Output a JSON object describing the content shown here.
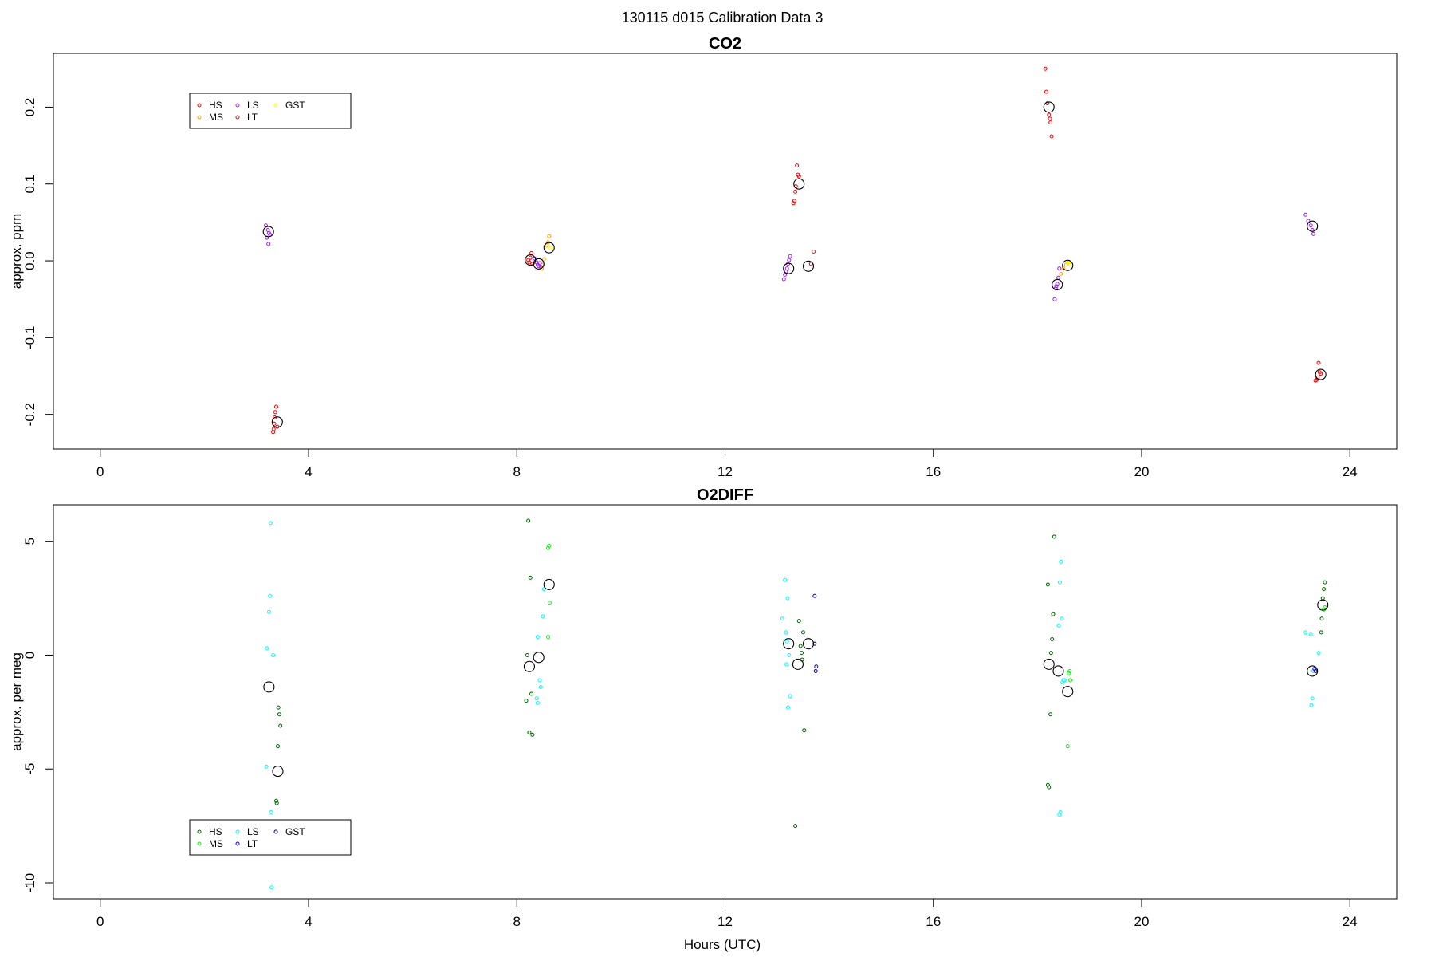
{
  "page_title": "130115   d015   Calibration Data 3",
  "x_axis_label": "Hours (UTC)",
  "chart_data": [
    {
      "type": "scatter",
      "title": "CO2",
      "ylabel": "approx. ppm",
      "xlim": [
        -0.9,
        24.9
      ],
      "ylim": [
        -0.245,
        0.27
      ],
      "xticks": [
        0,
        4,
        8,
        12,
        16,
        20,
        24
      ],
      "xtick_labels": [
        "0",
        "4",
        "8",
        "12",
        "16",
        "20",
        "24"
      ],
      "yticks": [
        -0.2,
        -0.1,
        0.0,
        0.1,
        0.2
      ],
      "ytick_labels": [
        "-0.2",
        "-0.1",
        "0.0",
        "0.1",
        "0.2"
      ],
      "legend": {
        "placement": "top-left",
        "entries": [
          {
            "name": "HS",
            "color": "#ff0000"
          },
          {
            "name": "MS",
            "color": "#ffa500"
          },
          {
            "name": "LS",
            "color": "#a020f0"
          },
          {
            "name": "LT",
            "color": "#b22222"
          },
          {
            "name": "GST",
            "color": "#ffff00"
          }
        ]
      },
      "series": [
        {
          "name": "HS",
          "color": "#ff0000",
          "points": [
            [
              3.38,
              -0.19
            ],
            [
              3.36,
              -0.197
            ],
            [
              3.35,
              -0.204
            ],
            [
              3.34,
              -0.212
            ],
            [
              3.33,
              -0.219
            ],
            [
              3.32,
              -0.223
            ],
            [
              3.4,
              -0.216
            ],
            [
              8.22,
              0.001
            ],
            [
              8.24,
              -0.002
            ],
            [
              8.28,
              0.01
            ],
            [
              8.26,
              0.004
            ],
            [
              8.3,
              -0.004
            ],
            [
              13.38,
              0.124
            ],
            [
              13.4,
              0.112
            ],
            [
              13.42,
              0.11
            ],
            [
              13.36,
              0.097
            ],
            [
              13.35,
              0.09
            ],
            [
              13.33,
              0.078
            ],
            [
              13.31,
              0.075
            ],
            [
              18.15,
              0.25
            ],
            [
              18.17,
              0.22
            ],
            [
              18.19,
              0.205
            ],
            [
              18.22,
              0.19
            ],
            [
              18.24,
              0.185
            ],
            [
              18.25,
              0.18
            ],
            [
              18.27,
              0.162
            ],
            [
              23.4,
              -0.133
            ],
            [
              23.42,
              -0.145
            ],
            [
              23.38,
              -0.152
            ],
            [
              23.36,
              -0.155
            ],
            [
              23.34,
              -0.156
            ],
            [
              23.44,
              -0.147
            ]
          ]
        },
        {
          "name": "MS",
          "color": "#ffa500",
          "points": [
            [
              8.62,
              0.032
            ],
            [
              8.6,
              0.024
            ],
            [
              8.58,
              0.02
            ],
            [
              8.52,
              0.002
            ],
            [
              8.5,
              -0.005
            ],
            [
              8.48,
              -0.01
            ],
            [
              18.45,
              -0.017
            ],
            [
              18.5,
              -0.01
            ],
            [
              18.55,
              -0.005
            ],
            [
              18.6,
              -0.002
            ]
          ]
        },
        {
          "name": "LS",
          "color": "#a020f0",
          "points": [
            [
              3.18,
              0.046
            ],
            [
              3.22,
              0.04
            ],
            [
              3.24,
              0.036
            ],
            [
              3.26,
              0.034
            ],
            [
              3.2,
              0.03
            ],
            [
              3.23,
              0.022
            ],
            [
              8.34,
              0.003
            ],
            [
              8.38,
              -0.002
            ],
            [
              8.4,
              -0.005
            ],
            [
              8.42,
              -0.007
            ],
            [
              8.44,
              -0.003
            ],
            [
              8.46,
              -0.008
            ],
            [
              13.25,
              0.006
            ],
            [
              13.23,
              0.001
            ],
            [
              13.21,
              -0.004
            ],
            [
              13.19,
              -0.01
            ],
            [
              13.17,
              -0.014
            ],
            [
              13.15,
              -0.018
            ],
            [
              13.13,
              -0.024
            ],
            [
              18.42,
              -0.01
            ],
            [
              18.4,
              -0.022
            ],
            [
              18.38,
              -0.03
            ],
            [
              18.36,
              -0.033
            ],
            [
              18.35,
              -0.036
            ],
            [
              18.33,
              -0.05
            ],
            [
              23.15,
              0.06
            ],
            [
              23.2,
              0.052
            ],
            [
              23.25,
              0.046
            ],
            [
              23.28,
              0.04
            ],
            [
              23.3,
              0.035
            ]
          ]
        },
        {
          "name": "LT",
          "color": "#b22222",
          "points": [
            [
              13.7,
              0.012
            ],
            [
              13.65,
              -0.004
            ]
          ]
        },
        {
          "name": "GST",
          "color": "#ffff00",
          "points": [
            [
              8.6,
              0.018
            ],
            [
              8.65,
              0.016
            ],
            [
              18.58,
              -0.003
            ],
            [
              18.62,
              -0.005
            ]
          ]
        },
        {
          "name": "mean",
          "color": "#000000",
          "large": true,
          "points": [
            [
              3.23,
              0.038
            ],
            [
              3.4,
              -0.21
            ],
            [
              8.26,
              0.001
            ],
            [
              8.42,
              -0.004
            ],
            [
              8.62,
              0.017
            ],
            [
              13.22,
              -0.01
            ],
            [
              13.42,
              0.1
            ],
            [
              13.6,
              -0.007
            ],
            [
              18.22,
              0.2
            ],
            [
              18.38,
              -0.031
            ],
            [
              18.58,
              -0.006
            ],
            [
              23.28,
              0.045
            ],
            [
              23.44,
              -0.148
            ]
          ]
        }
      ]
    },
    {
      "type": "scatter",
      "title": "O2DIFF",
      "ylabel": "approx. per meg",
      "xlim": [
        -0.9,
        24.9
      ],
      "ylim": [
        -10.7,
        6.6
      ],
      "xticks": [
        0,
        4,
        8,
        12,
        16,
        20,
        24
      ],
      "xtick_labels": [
        "0",
        "4",
        "8",
        "12",
        "16",
        "20",
        "24"
      ],
      "yticks": [
        -10,
        -5,
        0,
        5
      ],
      "ytick_labels": [
        "-10",
        "-5",
        "0",
        "5"
      ],
      "legend": {
        "placement": "bottom-left",
        "entries": [
          {
            "name": "HS",
            "color": "#006400"
          },
          {
            "name": "MS",
            "color": "#00ff00"
          },
          {
            "name": "LS",
            "color": "#00ffff"
          },
          {
            "name": "LT",
            "color": "#0000ff"
          },
          {
            "name": "GST",
            "color": "#000080"
          }
        ]
      },
      "series": [
        {
          "name": "HS",
          "color": "#006400",
          "points": [
            [
              3.42,
              -2.3
            ],
            [
              3.44,
              -2.6
            ],
            [
              3.46,
              -3.1
            ],
            [
              3.41,
              -4.0
            ],
            [
              3.38,
              -6.4
            ],
            [
              3.39,
              -6.5
            ],
            [
              8.22,
              5.9
            ],
            [
              8.26,
              3.4
            ],
            [
              8.2,
              0.0
            ],
            [
              8.18,
              -2.0
            ],
            [
              8.28,
              -1.7
            ],
            [
              8.24,
              -3.4
            ],
            [
              8.3,
              -3.5
            ],
            [
              13.42,
              1.5
            ],
            [
              13.5,
              1.0
            ],
            [
              13.45,
              0.4
            ],
            [
              13.47,
              0.1
            ],
            [
              13.48,
              -0.2
            ],
            [
              13.52,
              -3.3
            ],
            [
              13.35,
              -7.5
            ],
            [
              18.2,
              3.1
            ],
            [
              18.3,
              1.8
            ],
            [
              18.28,
              0.7
            ],
            [
              18.26,
              0.1
            ],
            [
              18.25,
              -2.6
            ],
            [
              18.2,
              -5.7
            ],
            [
              18.22,
              -5.8
            ],
            [
              18.32,
              5.2
            ],
            [
              23.52,
              3.2
            ],
            [
              23.5,
              2.9
            ],
            [
              23.48,
              2.5
            ],
            [
              23.46,
              1.6
            ],
            [
              23.45,
              1.0
            ]
          ]
        },
        {
          "name": "MS",
          "color": "#00ff00",
          "points": [
            [
              8.62,
              4.8
            ],
            [
              8.6,
              4.7
            ],
            [
              8.63,
              2.3
            ],
            [
              8.6,
              0.8
            ],
            [
              18.62,
              -0.7
            ],
            [
              18.6,
              -0.8
            ],
            [
              18.63,
              -1.1
            ],
            [
              18.58,
              -4.0
            ],
            [
              23.52,
              2.1
            ],
            [
              23.5,
              2.0
            ]
          ]
        },
        {
          "name": "LS",
          "color": "#00ffff",
          "points": [
            [
              3.27,
              5.8
            ],
            [
              3.26,
              2.6
            ],
            [
              3.24,
              1.9
            ],
            [
              3.2,
              0.3
            ],
            [
              3.32,
              0.0
            ],
            [
              3.19,
              -4.9
            ],
            [
              3.28,
              -6.9
            ],
            [
              3.29,
              -10.2
            ],
            [
              8.4,
              0.8
            ],
            [
              8.5,
              1.7
            ],
            [
              8.52,
              2.9
            ],
            [
              8.44,
              -1.1
            ],
            [
              8.46,
              -1.4
            ],
            [
              8.38,
              -1.9
            ],
            [
              8.4,
              -2.1
            ],
            [
              13.15,
              3.3
            ],
            [
              13.2,
              2.5
            ],
            [
              13.1,
              1.6
            ],
            [
              13.17,
              1.0
            ],
            [
              13.19,
              0.6
            ],
            [
              13.23,
              0.0
            ],
            [
              13.18,
              -0.4
            ],
            [
              13.25,
              -1.8
            ],
            [
              13.21,
              -2.3
            ],
            [
              18.45,
              4.1
            ],
            [
              18.43,
              3.2
            ],
            [
              18.47,
              1.6
            ],
            [
              18.41,
              1.3
            ],
            [
              18.5,
              -1.1
            ],
            [
              18.48,
              -1.2
            ],
            [
              18.52,
              -1.1
            ],
            [
              18.44,
              -6.9
            ],
            [
              18.42,
              -7.0
            ],
            [
              23.15,
              1.0
            ],
            [
              23.25,
              0.9
            ],
            [
              23.4,
              0.1
            ],
            [
              23.3,
              -0.7
            ],
            [
              23.28,
              -1.9
            ],
            [
              23.26,
              -2.2
            ]
          ]
        },
        {
          "name": "LT",
          "color": "#0000ff",
          "points": [
            [
              13.72,
              2.6
            ],
            [
              13.75,
              -0.5
            ],
            [
              13.74,
              -0.7
            ],
            [
              23.32,
              -0.6
            ],
            [
              23.34,
              -0.7
            ]
          ]
        },
        {
          "name": "GST",
          "color": "#000080",
          "points": [
            [
              13.72,
              0.5
            ]
          ]
        },
        {
          "name": "mean",
          "color": "#000000",
          "large": true,
          "points": [
            [
              3.24,
              -1.4
            ],
            [
              3.41,
              -5.1
            ],
            [
              8.24,
              -0.5
            ],
            [
              8.42,
              -0.1
            ],
            [
              8.62,
              3.1
            ],
            [
              13.22,
              0.5
            ],
            [
              13.4,
              -0.4
            ],
            [
              13.6,
              0.5
            ],
            [
              18.22,
              -0.4
            ],
            [
              18.4,
              -0.7
            ],
            [
              18.58,
              -1.6
            ],
            [
              23.28,
              -0.7
            ],
            [
              23.48,
              2.2
            ]
          ]
        }
      ]
    }
  ]
}
